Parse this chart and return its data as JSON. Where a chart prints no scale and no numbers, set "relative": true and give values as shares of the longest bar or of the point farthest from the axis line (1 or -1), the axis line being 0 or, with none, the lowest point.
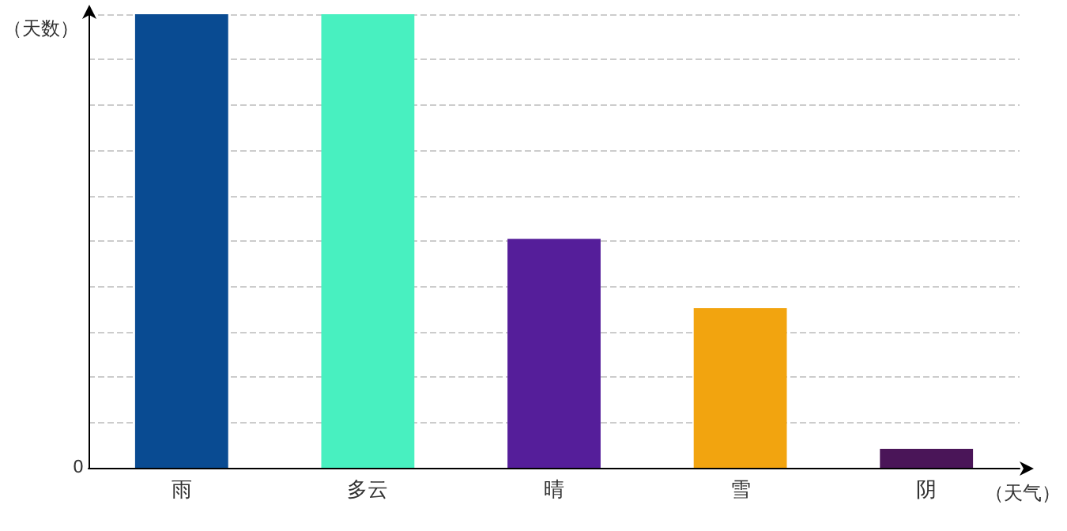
{
  "chart_data": {
    "type": "bar",
    "relative": true,
    "xlabel": "（天气）",
    "ylabel": "（天数）",
    "categories": [
      "雨",
      "多云",
      "晴",
      "雪",
      "阴"
    ],
    "values": [
      1,
      1,
      0.505,
      0.352,
      0.042
    ],
    "colors": [
      "#094b92",
      "#48f0c0",
      "#551e9a",
      "#f2a40f",
      "#4a1558"
    ],
    "annotations": [
      "0"
    ],
    "grid": "y"
  }
}
